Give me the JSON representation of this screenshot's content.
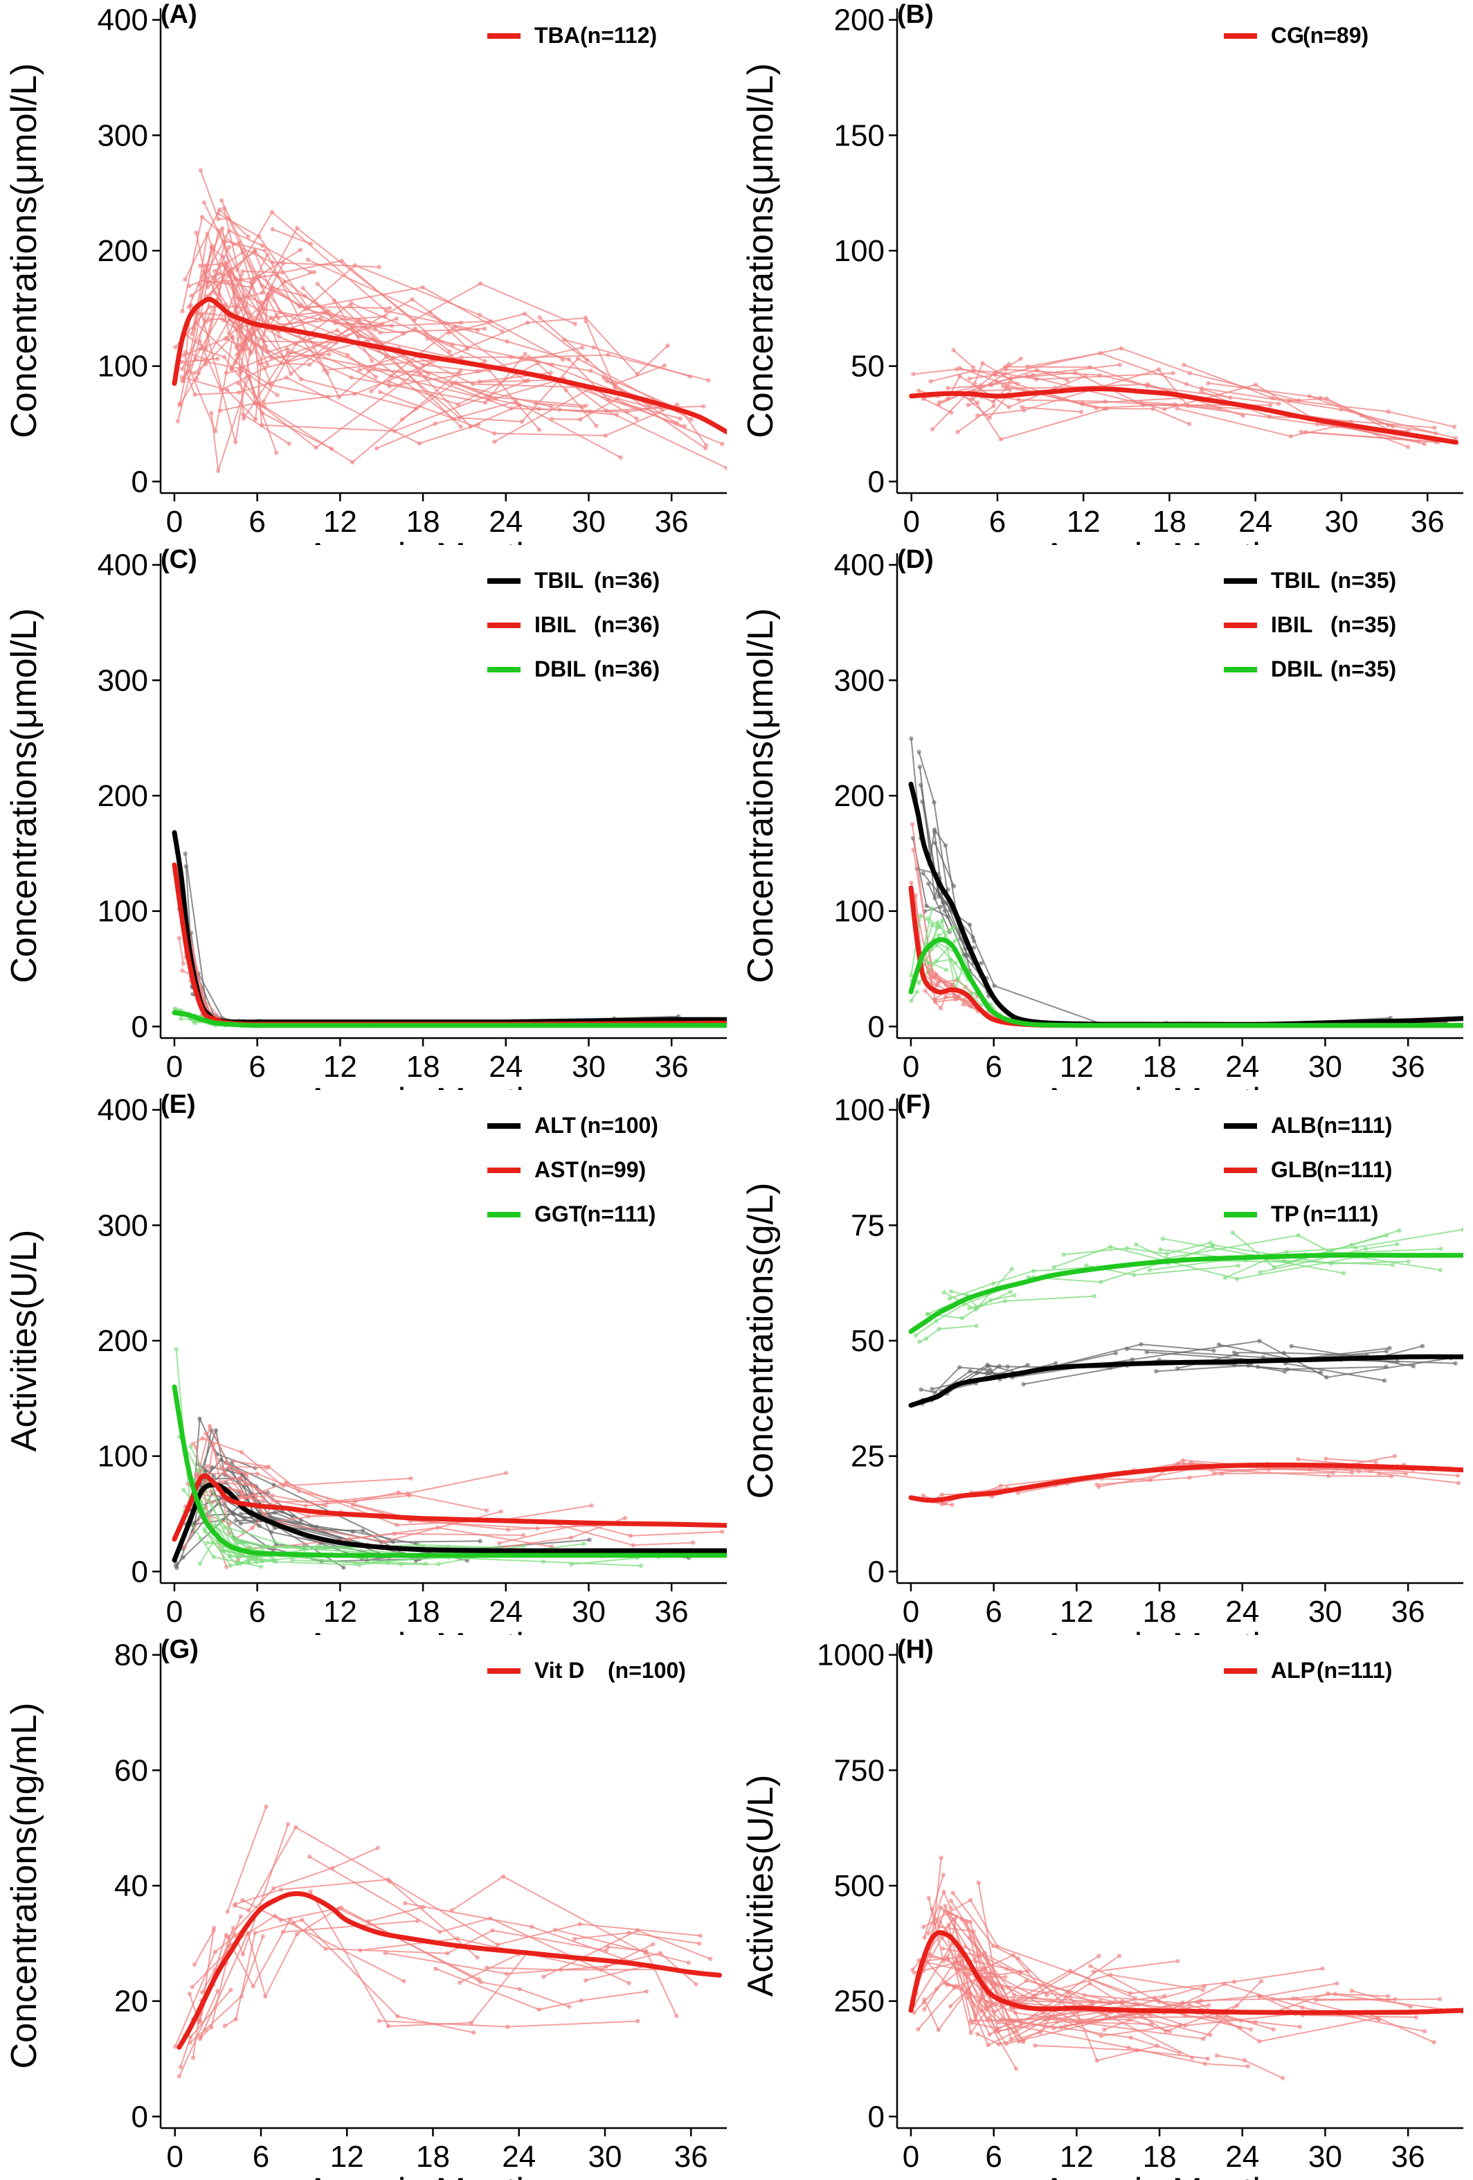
{
  "figure": {
    "panels": [
      {
        "id": "A",
        "label": "(A)"
      },
      {
        "id": "B",
        "label": "(B)"
      },
      {
        "id": "C",
        "label": "(C)"
      },
      {
        "id": "D",
        "label": "(D)"
      },
      {
        "id": "E",
        "label": "(E)"
      },
      {
        "id": "F",
        "label": "(F)"
      },
      {
        "id": "G",
        "label": "(G)"
      },
      {
        "id": "H",
        "label": "(H)"
      }
    ]
  },
  "colors": {
    "red": "#e8201a",
    "black": "#000000",
    "green": "#1ec81e",
    "light_red": "#f08080",
    "light_green": "#7ddc7d",
    "grey": "#666666"
  },
  "chart_data": [
    {
      "panel": "(A)",
      "type": "line",
      "xlabel": "Ages in Months",
      "ylabel": "Concentrations(μmol/L)",
      "xlim": [
        -1,
        40
      ],
      "ylim": [
        -10,
        410
      ],
      "xticks": [
        0,
        6,
        12,
        18,
        24,
        30,
        36
      ],
      "yticks": [
        0,
        100,
        200,
        300,
        400
      ],
      "legend": "top-right",
      "grid": false,
      "series": [
        {
          "name": "TBA",
          "n": "(n=112)",
          "color": "#e8201a",
          "x": [
            0,
            0.5,
            1,
            1.5,
            2,
            2.5,
            3,
            4,
            5,
            6,
            9,
            12,
            15,
            18,
            21,
            24,
            27,
            30,
            33,
            36,
            38,
            40
          ],
          "y": [
            85,
            120,
            140,
            150,
            155,
            158,
            155,
            145,
            140,
            136,
            130,
            123,
            116,
            109,
            103,
            97,
            90,
            82,
            74,
            64,
            56,
            43
          ]
        }
      ]
    },
    {
      "panel": "(B)",
      "type": "line",
      "xlabel": "Ages in Months",
      "ylabel": "Concentrations(μmol/L)",
      "xlim": [
        -1,
        38.5
      ],
      "ylim": [
        -5,
        205
      ],
      "xticks": [
        0,
        6,
        12,
        18,
        24,
        30,
        36
      ],
      "yticks": [
        0,
        50,
        100,
        150,
        200
      ],
      "legend": "top-right",
      "grid": false,
      "series": [
        {
          "name": "CG",
          "n": "(n=89)",
          "color": "#e8201a",
          "x": [
            0,
            2,
            4,
            6,
            8,
            10,
            12,
            14,
            16,
            18,
            20,
            24,
            28,
            32,
            36,
            38
          ],
          "y": [
            37,
            38,
            38,
            37,
            38,
            39,
            40,
            40,
            39,
            38,
            36,
            32,
            27,
            23,
            19,
            17
          ]
        }
      ]
    },
    {
      "panel": "(C)",
      "type": "line",
      "xlabel": "Ages in Months",
      "ylabel": "Concentrations(μmol/L)",
      "xlim": [
        -1,
        40
      ],
      "ylim": [
        -10,
        410
      ],
      "xticks": [
        0,
        6,
        12,
        18,
        24,
        30,
        36
      ],
      "yticks": [
        0,
        100,
        200,
        300,
        400
      ],
      "legend": "top-right",
      "grid": false,
      "series": [
        {
          "name": "TBIL",
          "n": "(n=36)",
          "color": "#000000",
          "x": [
            0,
            0.5,
            1,
            1.5,
            2,
            2.5,
            3,
            4,
            6,
            10,
            14,
            18,
            24,
            30,
            36,
            40
          ],
          "y": [
            168,
            130,
            75,
            40,
            18,
            10,
            6,
            4,
            4,
            4,
            4,
            4,
            4,
            5,
            6,
            6
          ]
        },
        {
          "name": "IBIL",
          "n": "(n=36)",
          "color": "#e8201a",
          "x": [
            0,
            1,
            2,
            3,
            4,
            6,
            12,
            24,
            40
          ],
          "y": [
            140,
            60,
            15,
            6,
            3,
            2,
            2,
            2,
            3
          ]
        },
        {
          "name": "DBIL",
          "n": "(n=36)",
          "color": "#1ec81e",
          "x": [
            0,
            1,
            2,
            3,
            4,
            6,
            12,
            24,
            40
          ],
          "y": [
            12,
            10,
            6,
            3,
            2,
            1,
            1,
            1,
            1
          ]
        }
      ]
    },
    {
      "panel": "(D)",
      "type": "line",
      "xlabel": "Ages in Months",
      "ylabel": "Concentrations(μmol/L)",
      "xlim": [
        -1,
        40
      ],
      "ylim": [
        -10,
        410
      ],
      "xticks": [
        0,
        6,
        12,
        18,
        24,
        30,
        36
      ],
      "yticks": [
        0,
        100,
        200,
        300,
        400
      ],
      "legend": "top-right",
      "grid": false,
      "series": [
        {
          "name": "TBIL",
          "n": "(n=35)",
          "color": "#000000",
          "x": [
            0,
            0.5,
            1,
            2,
            3,
            4,
            5,
            6,
            7,
            8,
            10,
            14,
            20,
            26,
            32,
            36,
            40
          ],
          "y": [
            210,
            185,
            155,
            125,
            105,
            75,
            48,
            25,
            12,
            6,
            3,
            2,
            2,
            2,
            4,
            5,
            7
          ]
        },
        {
          "name": "IBIL",
          "n": "(n=35)",
          "color": "#e8201a",
          "x": [
            0,
            0.5,
            1,
            2,
            3,
            4,
            5,
            6,
            8,
            12,
            24,
            40
          ],
          "y": [
            120,
            70,
            40,
            30,
            32,
            28,
            15,
            6,
            2,
            1,
            1,
            1
          ]
        },
        {
          "name": "DBIL",
          "n": "(n=35)",
          "color": "#1ec81e",
          "x": [
            0,
            0.5,
            1,
            2,
            3,
            4,
            5,
            6,
            8,
            12,
            24,
            40
          ],
          "y": [
            30,
            50,
            65,
            75,
            70,
            48,
            28,
            12,
            3,
            1,
            1,
            1
          ]
        }
      ]
    },
    {
      "panel": "(E)",
      "type": "line",
      "xlabel": "Ages in Months",
      "ylabel": "Activities(U/L)",
      "xlim": [
        -1,
        40
      ],
      "ylim": [
        -10,
        410
      ],
      "xticks": [
        0,
        6,
        12,
        18,
        24,
        30,
        36
      ],
      "yticks": [
        0,
        100,
        200,
        300,
        400
      ],
      "legend": "top-right",
      "grid": false,
      "series": [
        {
          "name": "ALT",
          "n": "(n=100)",
          "color": "#000000",
          "x": [
            0,
            1,
            2,
            3,
            4,
            5,
            6,
            8,
            10,
            12,
            15,
            18,
            24,
            30,
            36,
            40
          ],
          "y": [
            10,
            40,
            70,
            75,
            68,
            55,
            48,
            38,
            30,
            25,
            21,
            19,
            18,
            18,
            18,
            18
          ]
        },
        {
          "name": "AST",
          "n": "(n=99)",
          "color": "#e8201a",
          "x": [
            0,
            1,
            2,
            3,
            4,
            6,
            8,
            10,
            12,
            15,
            18,
            24,
            30,
            36,
            40
          ],
          "y": [
            28,
            55,
            82,
            75,
            62,
            57,
            55,
            52,
            50,
            48,
            46,
            44,
            42,
            41,
            40
          ]
        },
        {
          "name": "GGT",
          "n": "(n=111)",
          "color": "#1ec81e",
          "x": [
            0,
            1,
            2,
            3,
            4,
            5,
            6,
            8,
            12,
            18,
            24,
            30,
            36,
            40
          ],
          "y": [
            160,
            90,
            50,
            32,
            22,
            18,
            16,
            15,
            14,
            14,
            14,
            14,
            14,
            14
          ]
        }
      ]
    },
    {
      "panel": "(F)",
      "type": "line",
      "xlabel": "Ages in Months",
      "ylabel": "Concentrations(g/L)",
      "xlim": [
        -1,
        40
      ],
      "ylim": [
        -2.5,
        102.5
      ],
      "xticks": [
        0,
        6,
        12,
        18,
        24,
        30,
        36
      ],
      "yticks": [
        0,
        25,
        50,
        75,
        100
      ],
      "legend": "top-right",
      "grid": false,
      "series": [
        {
          "name": "ALB",
          "n": "(n=111)",
          "color": "#000000",
          "x": [
            0,
            1,
            2,
            3,
            4,
            6,
            8,
            10,
            12,
            16,
            20,
            24,
            30,
            36,
            40
          ],
          "y": [
            36,
            37,
            38,
            40,
            41,
            42,
            43,
            44,
            44.5,
            45,
            45.3,
            45.5,
            46,
            46.5,
            46.5
          ]
        },
        {
          "name": "GLB",
          "n": "(n=111)",
          "color": "#e8201a",
          "x": [
            0,
            1,
            2,
            3,
            4,
            6,
            8,
            10,
            12,
            16,
            20,
            24,
            30,
            36,
            40
          ],
          "y": [
            16,
            15.5,
            15.5,
            16,
            16.5,
            17,
            18,
            19,
            20,
            21.5,
            22.5,
            23,
            23,
            22.5,
            22
          ]
        },
        {
          "name": "TP",
          "n": "(n=111)",
          "color": "#1ec81e",
          "x": [
            0,
            1,
            2,
            3,
            4,
            6,
            8,
            10,
            12,
            16,
            20,
            24,
            30,
            36,
            40
          ],
          "y": [
            52,
            54,
            56,
            57.5,
            59,
            61,
            62.5,
            64,
            65,
            66.5,
            67.5,
            68,
            68.5,
            68.5,
            68.5
          ]
        }
      ]
    },
    {
      "panel": "(G)",
      "type": "line",
      "xlabel": "Ages in Months",
      "ylabel": "Concentrations(ng/mL)",
      "xlim": [
        -1,
        38.5
      ],
      "ylim": [
        -2,
        82
      ],
      "xticks": [
        0,
        6,
        12,
        18,
        24,
        30,
        36
      ],
      "yticks": [
        0,
        20,
        40,
        60,
        80
      ],
      "legend": "top-right",
      "grid": false,
      "series": [
        {
          "name": "Vit D",
          "n": "(n=100)",
          "color": "#e8201a",
          "x": [
            0.3,
            1,
            2,
            3,
            4,
            5,
            6,
            7,
            8,
            9,
            10,
            11,
            12,
            14,
            16,
            20,
            24,
            28,
            32,
            36,
            38
          ],
          "y": [
            12,
            15,
            20,
            25,
            29,
            33,
            36,
            37.5,
            38.5,
            38.5,
            37.5,
            36,
            34,
            32,
            31,
            29.5,
            28.5,
            27.5,
            26.5,
            25,
            24.5
          ]
        }
      ]
    },
    {
      "panel": "(H)",
      "type": "line",
      "xlabel": "Ages in Months",
      "ylabel": "Activities(U/L)",
      "xlim": [
        -1,
        40
      ],
      "ylim": [
        -25,
        1025
      ],
      "xticks": [
        0,
        6,
        12,
        18,
        24,
        30,
        36
      ],
      "yticks": [
        0,
        250,
        500,
        750,
        1000
      ],
      "legend": "top-right",
      "grid": false,
      "series": [
        {
          "name": "ALP",
          "n": "(n=111)",
          "color": "#e8201a",
          "x": [
            0,
            0.5,
            1,
            1.5,
            2,
            2.5,
            3,
            4,
            5,
            6,
            8,
            10,
            12,
            16,
            20,
            24,
            30,
            36,
            40
          ],
          "y": [
            230,
            300,
            350,
            385,
            398,
            395,
            385,
            345,
            295,
            260,
            238,
            233,
            235,
            230,
            228,
            226,
            225,
            226,
            230
          ]
        }
      ]
    }
  ]
}
